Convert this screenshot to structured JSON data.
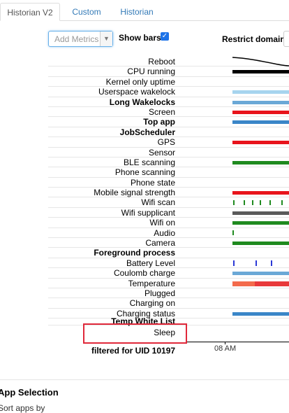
{
  "tabs": [
    {
      "label": "Historian V2",
      "active": true
    },
    {
      "label": "Custom",
      "active": false
    },
    {
      "label": "Historian",
      "active": false
    }
  ],
  "controls": {
    "add_metrics_placeholder": "Add Metrics",
    "show_bars_label": "Show bars",
    "show_bars_checked": true,
    "restrict_domain_label": "Restrict domain"
  },
  "metrics": [
    {
      "label": "Reboot",
      "bold": false
    },
    {
      "label": "CPU running",
      "bold": false
    },
    {
      "label": "Kernel only uptime",
      "bold": false
    },
    {
      "label": "Userspace wakelock",
      "bold": false
    },
    {
      "label": "Long Wakelocks",
      "bold": true
    },
    {
      "label": "Screen",
      "bold": false
    },
    {
      "label": "Top app",
      "bold": true
    },
    {
      "label": "JobScheduler",
      "bold": true
    },
    {
      "label": "GPS",
      "bold": false
    },
    {
      "label": "Sensor",
      "bold": false
    },
    {
      "label": "BLE scanning",
      "bold": false
    },
    {
      "label": "Phone scanning",
      "bold": false
    },
    {
      "label": "Phone state",
      "bold": false
    },
    {
      "label": "Mobile signal strength",
      "bold": false
    },
    {
      "label": "Wifi scan",
      "bold": false
    },
    {
      "label": "Wifi supplicant",
      "bold": false
    },
    {
      "label": "Wifi on",
      "bold": false
    },
    {
      "label": "Audio",
      "bold": false
    },
    {
      "label": "Camera",
      "bold": false
    },
    {
      "label": "Foreground process",
      "bold": true
    },
    {
      "label": "Battery Level",
      "bold": false
    },
    {
      "label": "Coulomb charge",
      "bold": false
    },
    {
      "label": "Temperature",
      "bold": false
    },
    {
      "label": "Plugged",
      "bold": false
    },
    {
      "label": "Charging on",
      "bold": false
    },
    {
      "label": "Charging status",
      "bold": false
    },
    {
      "label": "Temp White List",
      "bold": true
    },
    {
      "label": "Sleep",
      "bold": false
    }
  ],
  "colors": {
    "black": "#000000",
    "light_blue": "#a6d4ee",
    "steel_blue": "#6aa8d6",
    "mid_blue": "#3a86c8",
    "red": "#e8141c",
    "green": "#1f8a1f",
    "dark_gray": "#5a5a5a",
    "battery_blue": "#2a38d6",
    "temp_orange": "#f36b4c",
    "temp_red": "#e8393b"
  },
  "timeline": {
    "axis_label": "08 AM",
    "filter_label": "filtered for UID 10197"
  },
  "footer": {
    "section_title": "App Selection",
    "sort_label": "Sort apps by"
  }
}
